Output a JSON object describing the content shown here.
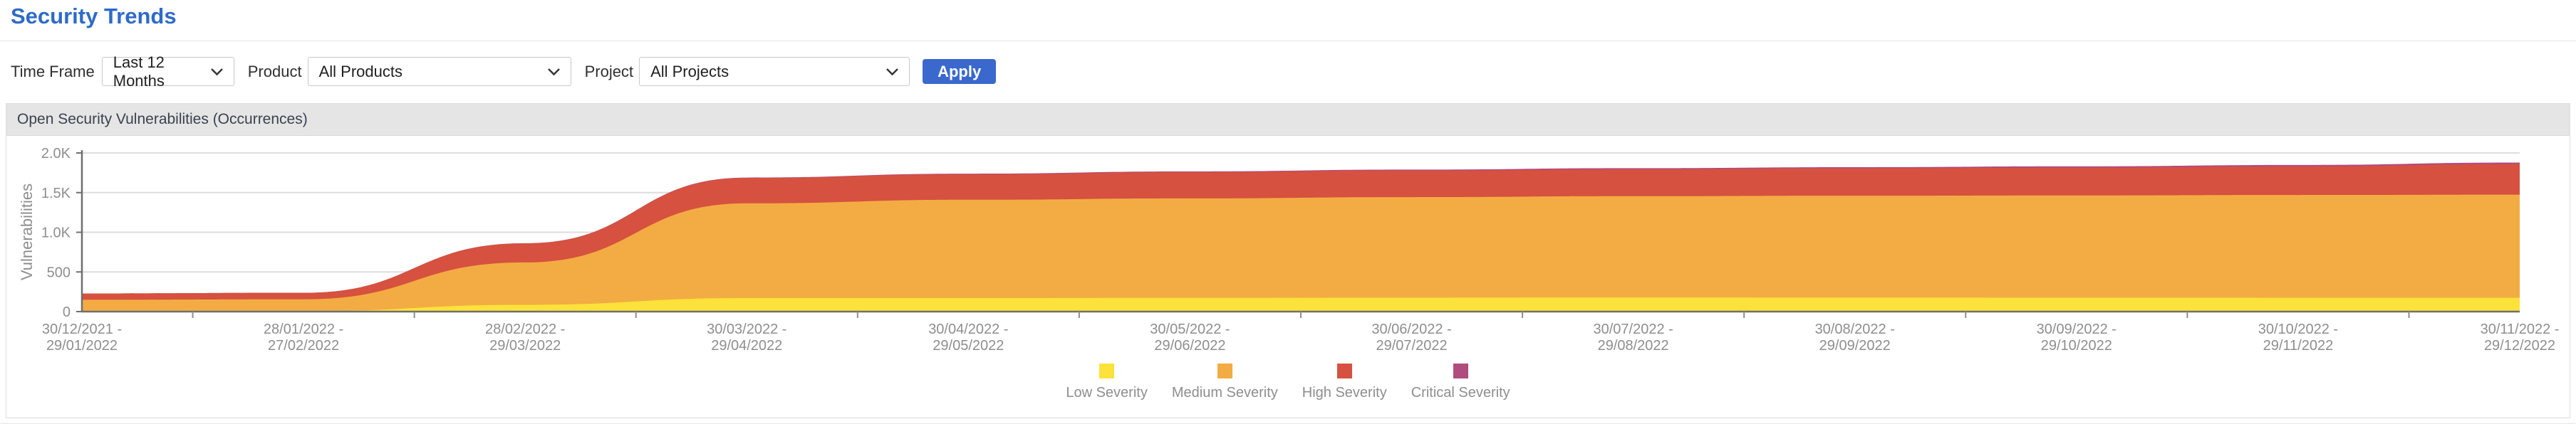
{
  "page": {
    "title": "Security Trends"
  },
  "filters": {
    "time_frame": {
      "label": "Time Frame",
      "value": "Last 12 Months"
    },
    "product": {
      "label": "Product",
      "value": "All Products"
    },
    "project": {
      "label": "Project",
      "value": "All Projects"
    },
    "apply_label": "Apply",
    "accent_color": "#3A68CD"
  },
  "panel": {
    "title": "Open Security Vulnerabilities (Occurrences)"
  },
  "chart_data": {
    "type": "area",
    "stacked": true,
    "title": "Open Security Vulnerabilities (Occurrences)",
    "xlabel": "",
    "ylabel": "Vulnerabilities",
    "ylim": [
      0,
      2000
    ],
    "grid": true,
    "legend_position": "bottom",
    "yticks": [
      {
        "value": 0,
        "label": "0"
      },
      {
        "value": 500,
        "label": "500"
      },
      {
        "value": 1000,
        "label": "1.0K"
      },
      {
        "value": 1500,
        "label": "1.5K"
      },
      {
        "value": 2000,
        "label": "2.0K"
      }
    ],
    "categories": [
      [
        "30/12/2021 -",
        "29/01/2022"
      ],
      [
        "28/01/2022 -",
        "27/02/2022"
      ],
      [
        "28/02/2022 -",
        "29/03/2022"
      ],
      [
        "30/03/2022 -",
        "29/04/2022"
      ],
      [
        "30/04/2022 -",
        "29/05/2022"
      ],
      [
        "30/05/2022 -",
        "29/06/2022"
      ],
      [
        "30/06/2022 -",
        "29/07/2022"
      ],
      [
        "30/07/2022 -",
        "29/08/2022"
      ],
      [
        "30/08/2022 -",
        "29/09/2022"
      ],
      [
        "30/09/2022 -",
        "29/10/2022"
      ],
      [
        "30/10/2022 -",
        "29/11/2022"
      ],
      [
        "30/11/2022 -",
        "29/12/2022"
      ]
    ],
    "series": [
      {
        "name": "Low Severity",
        "color": "#FCE23A",
        "values": [
          2,
          5,
          85,
          170,
          170,
          172,
          175,
          178,
          176,
          175,
          174,
          174
        ]
      },
      {
        "name": "Medium Severity",
        "color": "#F3AC43",
        "values": [
          147,
          150,
          535,
          1195,
          1240,
          1255,
          1268,
          1277,
          1285,
          1290,
          1296,
          1300
        ]
      },
      {
        "name": "High Severity",
        "color": "#D6513F",
        "values": [
          80,
          82,
          240,
          320,
          321,
          330,
          335,
          338,
          345,
          350,
          360,
          385
        ]
      },
      {
        "name": "Critical Severity",
        "color": "#B14C7E",
        "values": [
          0,
          0,
          2,
          5,
          8,
          10,
          12,
          15,
          15,
          16,
          18,
          20
        ]
      }
    ],
    "axis_color": "#6F6F6F",
    "grid_color": "#DDDDDD",
    "tick_text_color": "#8E8E8E"
  }
}
